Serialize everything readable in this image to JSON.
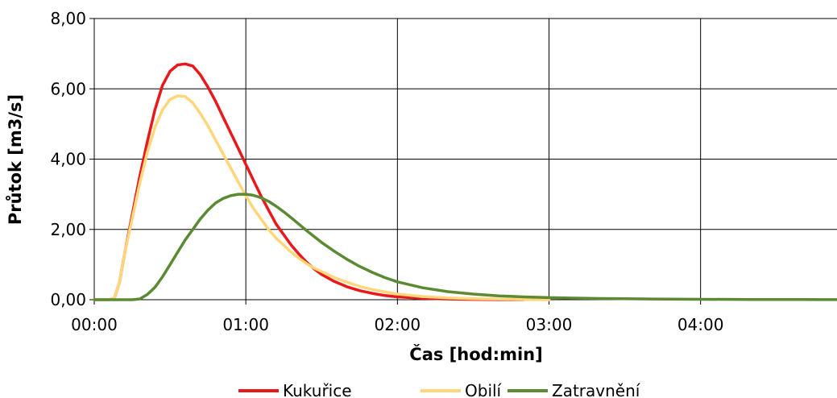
{
  "chart_data": {
    "type": "line",
    "xlabel": "Čas [hod:min]",
    "ylabel": "Průtok [m3/s]",
    "x_unit": "minutes",
    "xlim": [
      0,
      294
    ],
    "ylim": [
      0,
      8
    ],
    "grid": true,
    "legend_position": "bottom",
    "x_ticks": [
      {
        "value": 0,
        "label": "00:00"
      },
      {
        "value": 60,
        "label": "01:00"
      },
      {
        "value": 120,
        "label": "02:00"
      },
      {
        "value": 180,
        "label": "03:00"
      },
      {
        "value": 240,
        "label": "04:00"
      }
    ],
    "y_ticks": [
      {
        "value": 0,
        "label": "0,00"
      },
      {
        "value": 2,
        "label": "2,00"
      },
      {
        "value": 4,
        "label": "4,00"
      },
      {
        "value": 6,
        "label": "6,00"
      },
      {
        "value": 8,
        "label": "8,00"
      }
    ],
    "series": [
      {
        "name": "Kukuřice",
        "color": "#e8181b",
        "points": [
          [
            0,
            0
          ],
          [
            6,
            0
          ],
          [
            8,
            0.05
          ],
          [
            10,
            0.5
          ],
          [
            12,
            1.3
          ],
          [
            15,
            2.4
          ],
          [
            18,
            3.5
          ],
          [
            21,
            4.5
          ],
          [
            24,
            5.4
          ],
          [
            27,
            6.1
          ],
          [
            30,
            6.5
          ],
          [
            33,
            6.68
          ],
          [
            36,
            6.71
          ],
          [
            39,
            6.65
          ],
          [
            42,
            6.4
          ],
          [
            45,
            6.05
          ],
          [
            48,
            5.65
          ],
          [
            51,
            5.2
          ],
          [
            54,
            4.75
          ],
          [
            57,
            4.3
          ],
          [
            60,
            3.85
          ],
          [
            63,
            3.4
          ],
          [
            66,
            2.95
          ],
          [
            69,
            2.55
          ],
          [
            72,
            2.15
          ],
          [
            75,
            1.85
          ],
          [
            78,
            1.55
          ],
          [
            81,
            1.3
          ],
          [
            84,
            1.07
          ],
          [
            87,
            0.88
          ],
          [
            90,
            0.72
          ],
          [
            95,
            0.52
          ],
          [
            100,
            0.37
          ],
          [
            105,
            0.26
          ],
          [
            110,
            0.18
          ],
          [
            115,
            0.12
          ],
          [
            120,
            0.08
          ],
          [
            130,
            0.04
          ],
          [
            140,
            0.02
          ],
          [
            150,
            0.01
          ],
          [
            160,
            0.003
          ],
          [
            170,
            0
          ]
        ]
      },
      {
        "name": "Obilí",
        "color": "#ffd67a",
        "points": [
          [
            0,
            0
          ],
          [
            6,
            0
          ],
          [
            8,
            0.05
          ],
          [
            10,
            0.5
          ],
          [
            12,
            1.3
          ],
          [
            15,
            2.3
          ],
          [
            18,
            3.3
          ],
          [
            21,
            4.2
          ],
          [
            24,
            4.9
          ],
          [
            27,
            5.4
          ],
          [
            30,
            5.7
          ],
          [
            33,
            5.8
          ],
          [
            36,
            5.78
          ],
          [
            39,
            5.6
          ],
          [
            42,
            5.3
          ],
          [
            45,
            4.95
          ],
          [
            48,
            4.55
          ],
          [
            51,
            4.15
          ],
          [
            54,
            3.75
          ],
          [
            57,
            3.35
          ],
          [
            60,
            2.95
          ],
          [
            63,
            2.6
          ],
          [
            66,
            2.3
          ],
          [
            69,
            2.0
          ],
          [
            72,
            1.75
          ],
          [
            75,
            1.55
          ],
          [
            78,
            1.35
          ],
          [
            81,
            1.18
          ],
          [
            84,
            1.03
          ],
          [
            87,
            0.9
          ],
          [
            90,
            0.8
          ],
          [
            95,
            0.63
          ],
          [
            100,
            0.5
          ],
          [
            105,
            0.38
          ],
          [
            110,
            0.29
          ],
          [
            115,
            0.22
          ],
          [
            120,
            0.16
          ],
          [
            130,
            0.09
          ],
          [
            140,
            0.05
          ],
          [
            150,
            0.03
          ],
          [
            160,
            0.015
          ],
          [
            170,
            0.008
          ],
          [
            180,
            0
          ]
        ]
      },
      {
        "name": "Zatravnění",
        "color": "#5a8a32",
        "points": [
          [
            0,
            0
          ],
          [
            15,
            0
          ],
          [
            18,
            0.02
          ],
          [
            21,
            0.15
          ],
          [
            24,
            0.35
          ],
          [
            27,
            0.65
          ],
          [
            30,
            1.0
          ],
          [
            33,
            1.35
          ],
          [
            36,
            1.7
          ],
          [
            39,
            2.0
          ],
          [
            42,
            2.3
          ],
          [
            45,
            2.55
          ],
          [
            48,
            2.75
          ],
          [
            51,
            2.88
          ],
          [
            54,
            2.96
          ],
          [
            57,
            3.0
          ],
          [
            60,
            3.0
          ],
          [
            63,
            2.97
          ],
          [
            66,
            2.9
          ],
          [
            69,
            2.8
          ],
          [
            72,
            2.66
          ],
          [
            75,
            2.5
          ],
          [
            78,
            2.33
          ],
          [
            81,
            2.15
          ],
          [
            84,
            1.97
          ],
          [
            87,
            1.8
          ],
          [
            90,
            1.63
          ],
          [
            95,
            1.38
          ],
          [
            100,
            1.15
          ],
          [
            105,
            0.95
          ],
          [
            110,
            0.78
          ],
          [
            115,
            0.63
          ],
          [
            120,
            0.51
          ],
          [
            130,
            0.34
          ],
          [
            140,
            0.23
          ],
          [
            150,
            0.16
          ],
          [
            160,
            0.11
          ],
          [
            170,
            0.08
          ],
          [
            180,
            0.06
          ],
          [
            190,
            0.045
          ],
          [
            200,
            0.035
          ],
          [
            220,
            0.02
          ],
          [
            240,
            0.012
          ],
          [
            260,
            0.008
          ],
          [
            280,
            0.005
          ],
          [
            294,
            0.003
          ]
        ]
      }
    ]
  }
}
